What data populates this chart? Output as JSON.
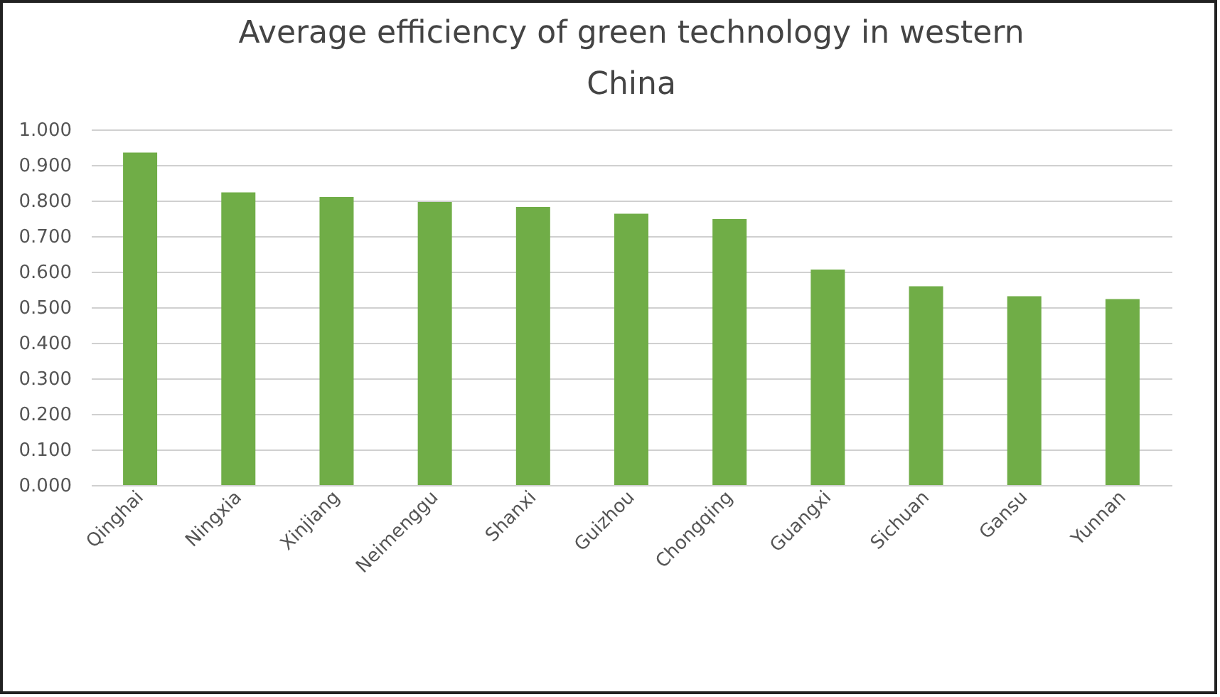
{
  "chart_data": {
    "type": "bar",
    "title": "Average efficiency of green technology in western China",
    "categories": [
      "Qinghai",
      "Ningxia",
      "Xinjiang",
      "Neimenggu",
      "Shanxi",
      "Guizhou",
      "Chongqing",
      "Guangxi",
      "Sichuan",
      "Gansu",
      "Yunnan"
    ],
    "values": [
      0.935,
      0.823,
      0.81,
      0.796,
      0.782,
      0.763,
      0.748,
      0.606,
      0.559,
      0.531,
      0.523
    ],
    "color": "#70ad47",
    "ylim": [
      0,
      1
    ],
    "yticks": [
      {
        "value": 0,
        "label": "0.000"
      },
      {
        "value": 0.1,
        "label": "0.100"
      },
      {
        "value": 0.2,
        "label": "0.200"
      },
      {
        "value": 0.3,
        "label": "0.300"
      },
      {
        "value": 0.4,
        "label": "0.400"
      },
      {
        "value": 0.5,
        "label": "0.500"
      },
      {
        "value": 0.6,
        "label": "0.600"
      },
      {
        "value": 0.7,
        "label": "0.700"
      },
      {
        "value": 0.8,
        "label": "0.800"
      },
      {
        "value": 0.9,
        "label": "0.900"
      },
      {
        "value": 1,
        "label": "1.000"
      }
    ],
    "grid": "y"
  }
}
